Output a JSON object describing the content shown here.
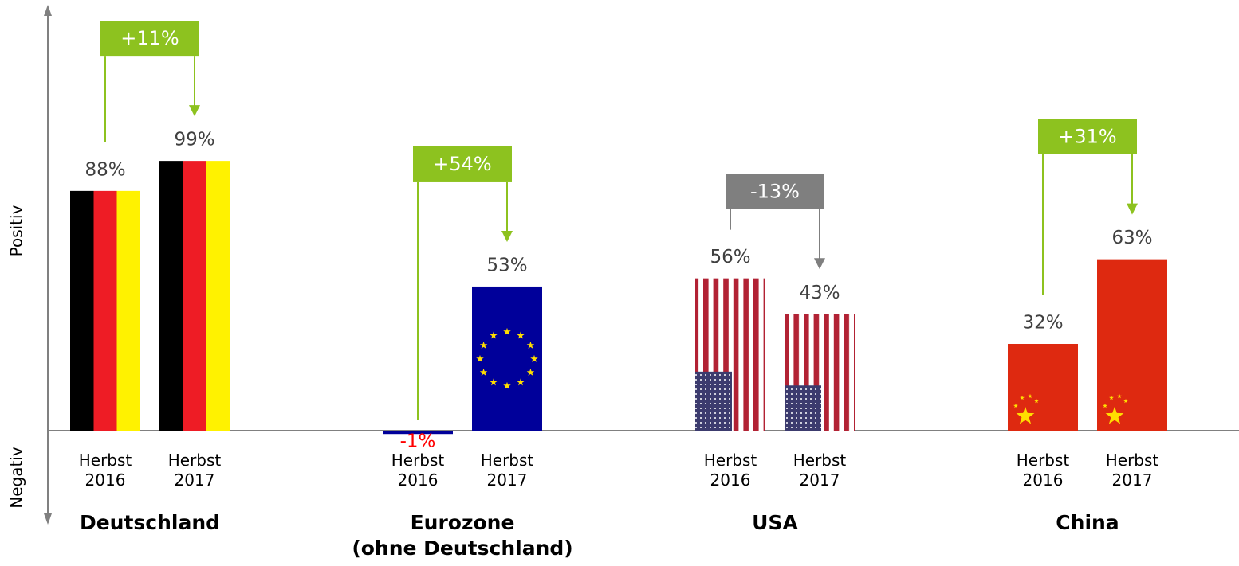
{
  "chart_data": {
    "type": "bar",
    "categories": [
      "Deutschland",
      "Eurozone\n(ohne Deutschland)",
      "USA",
      "China"
    ],
    "series": [
      {
        "name": "Herbst 2016",
        "values": [
          88,
          -1,
          56,
          32
        ],
        "value_labels": [
          "88%",
          "-1%",
          "56%",
          "32%"
        ]
      },
      {
        "name": "Herbst 2017",
        "values": [
          99,
          53,
          43,
          63
        ],
        "value_labels": [
          "99%",
          "53%",
          "43%",
          "63%"
        ]
      }
    ],
    "annotations": [
      {
        "text": "+11%",
        "color": "#8dc21f"
      },
      {
        "text": "+54%",
        "color": "#8dc21f"
      },
      {
        "text": "-13%",
        "color": "#7f7f7f"
      },
      {
        "text": "+31%",
        "color": "#8dc21f"
      }
    ],
    "negative_label_color": "#ff0000",
    "y_label_positive": "Positiv",
    "y_label_negative": "Negativ",
    "ylim": [
      -33,
      155
    ]
  }
}
